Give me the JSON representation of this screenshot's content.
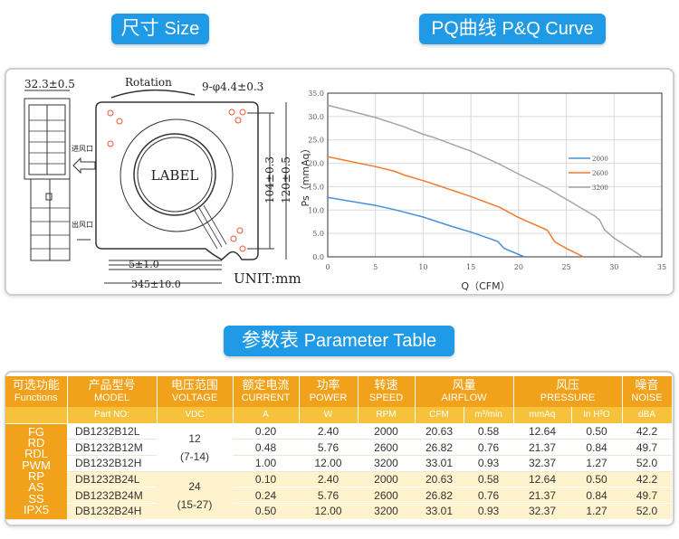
{
  "titles": {
    "size_cn": "尺寸",
    "size_en": "Size",
    "pq_cn": "PQ曲线",
    "pq_en": "P&Q Curve",
    "table_cn": "参数表",
    "table_en": "Parameter Table"
  },
  "drawing": {
    "depth": "32.3±0.5",
    "rotation": "Rotation",
    "holes": "9-φ4.4±0.3",
    "inlet": "进风口",
    "outlet": "出风口",
    "label": "LABEL",
    "hole_spacing": "104±0.3",
    "size": "120±0.5",
    "strip": "5±1.0",
    "lead": "345±10.0",
    "unit": "UNIT:mm"
  },
  "chart_data": {
    "type": "line",
    "xlabel": "Q（CFM）",
    "ylabel": "Ps（mmAq）",
    "xlim": [
      0,
      35
    ],
    "ylim": [
      0,
      35
    ],
    "xticks": [
      "0",
      "5",
      "10",
      "15",
      "20",
      "25",
      "30",
      "35"
    ],
    "yticks": [
      "0.0",
      "5.0",
      "10.0",
      "15.0",
      "20.0",
      "25.0",
      "30.0",
      "35.0"
    ],
    "grid": true,
    "legend_position": "right",
    "series": [
      {
        "name": "2000",
        "color": "#4a8fd8",
        "points": [
          [
            0,
            12.7
          ],
          [
            5,
            11
          ],
          [
            7,
            10.1
          ],
          [
            10,
            8.5
          ],
          [
            13,
            6.5
          ],
          [
            15,
            5.3
          ],
          [
            17.8,
            3.3
          ],
          [
            18.5,
            1.8
          ],
          [
            20.6,
            0
          ]
        ]
      },
      {
        "name": "2600",
        "color": "#f07a2a",
        "points": [
          [
            0,
            21.4
          ],
          [
            5,
            19.3
          ],
          [
            7,
            18.3
          ],
          [
            8,
            17.5
          ],
          [
            10,
            16.3
          ],
          [
            15,
            12.9
          ],
          [
            18,
            10.6
          ],
          [
            20,
            8.4
          ],
          [
            23,
            5.7
          ],
          [
            23.8,
            3.2
          ],
          [
            25,
            1.8
          ],
          [
            26.8,
            0
          ]
        ]
      },
      {
        "name": "3200",
        "color": "#a5a5a5",
        "points": [
          [
            0,
            32.4
          ],
          [
            5,
            29.8
          ],
          [
            8,
            27.8
          ],
          [
            10,
            26.2
          ],
          [
            11,
            25.6
          ],
          [
            15,
            22.6
          ],
          [
            18,
            19.8
          ],
          [
            20,
            17.7
          ],
          [
            23,
            14.7
          ],
          [
            25,
            12.3
          ],
          [
            28,
            8.7
          ],
          [
            28.5,
            7.8
          ],
          [
            29,
            5.8
          ],
          [
            30,
            4
          ],
          [
            33,
            0
          ]
        ]
      }
    ]
  },
  "table": {
    "headers": [
      {
        "cn": "可选功能",
        "en": "Functions"
      },
      {
        "cn": "产品型号",
        "en": "MODEL"
      },
      {
        "cn": "电压范围",
        "en": "VOLTAGE"
      },
      {
        "cn": "额定电流",
        "en": "CURRENT"
      },
      {
        "cn": "功率",
        "en": "POWER"
      },
      {
        "cn": "转速",
        "en": "SPEED"
      },
      {
        "cn": "风量",
        "en": "AIRFLOW"
      },
      {
        "cn": "风压",
        "en": "PRESSURE"
      },
      {
        "cn": "噪音",
        "en": "NOISE"
      }
    ],
    "units": [
      "Part NO:",
      "VDC",
      "A",
      "W",
      "RPM",
      "CFM",
      "m³/min",
      "mmAq",
      "In H²O",
      "dBA"
    ],
    "functions": [
      "FG",
      "RD",
      "RDL",
      "PWM",
      "RP",
      "AS",
      "SS",
      "IPX5"
    ],
    "voltage_groups": [
      {
        "v": "12",
        "range": "(7-14)"
      },
      {
        "v": "24",
        "range": "(15-27)"
      }
    ],
    "rows": [
      {
        "model": "DB1232B12L",
        "a": "0.20",
        "w": "2.40",
        "rpm": "2000",
        "cfm": "20.63",
        "m3": "0.58",
        "mmaq": "12.64",
        "inh2o": "0.50",
        "dba": "42.2"
      },
      {
        "model": "DB1232B12M",
        "a": "0.48",
        "w": "5.76",
        "rpm": "2600",
        "cfm": "26.82",
        "m3": "0.76",
        "mmaq": "21.37",
        "inh2o": "0.84",
        "dba": "49.7"
      },
      {
        "model": "DB1232B12H",
        "a": "1.00",
        "w": "12.00",
        "rpm": "3200",
        "cfm": "33.01",
        "m3": "0.93",
        "mmaq": "32.37",
        "inh2o": "1.27",
        "dba": "52.0"
      },
      {
        "model": "DB1232B24L",
        "a": "0.10",
        "w": "2.40",
        "rpm": "2000",
        "cfm": "20.63",
        "m3": "0.58",
        "mmaq": "12.64",
        "inh2o": "0.50",
        "dba": "42.2"
      },
      {
        "model": "DB1232B24M",
        "a": "0.24",
        "w": "5.76",
        "rpm": "2600",
        "cfm": "26.82",
        "m3": "0.76",
        "mmaq": "21.37",
        "inh2o": "0.84",
        "dba": "49.7"
      },
      {
        "model": "DB1232B24H",
        "a": "0.50",
        "w": "12.00",
        "rpm": "3200",
        "cfm": "33.01",
        "m3": "0.93",
        "mmaq": "32.37",
        "inh2o": "1.27",
        "dba": "52.0"
      }
    ]
  }
}
